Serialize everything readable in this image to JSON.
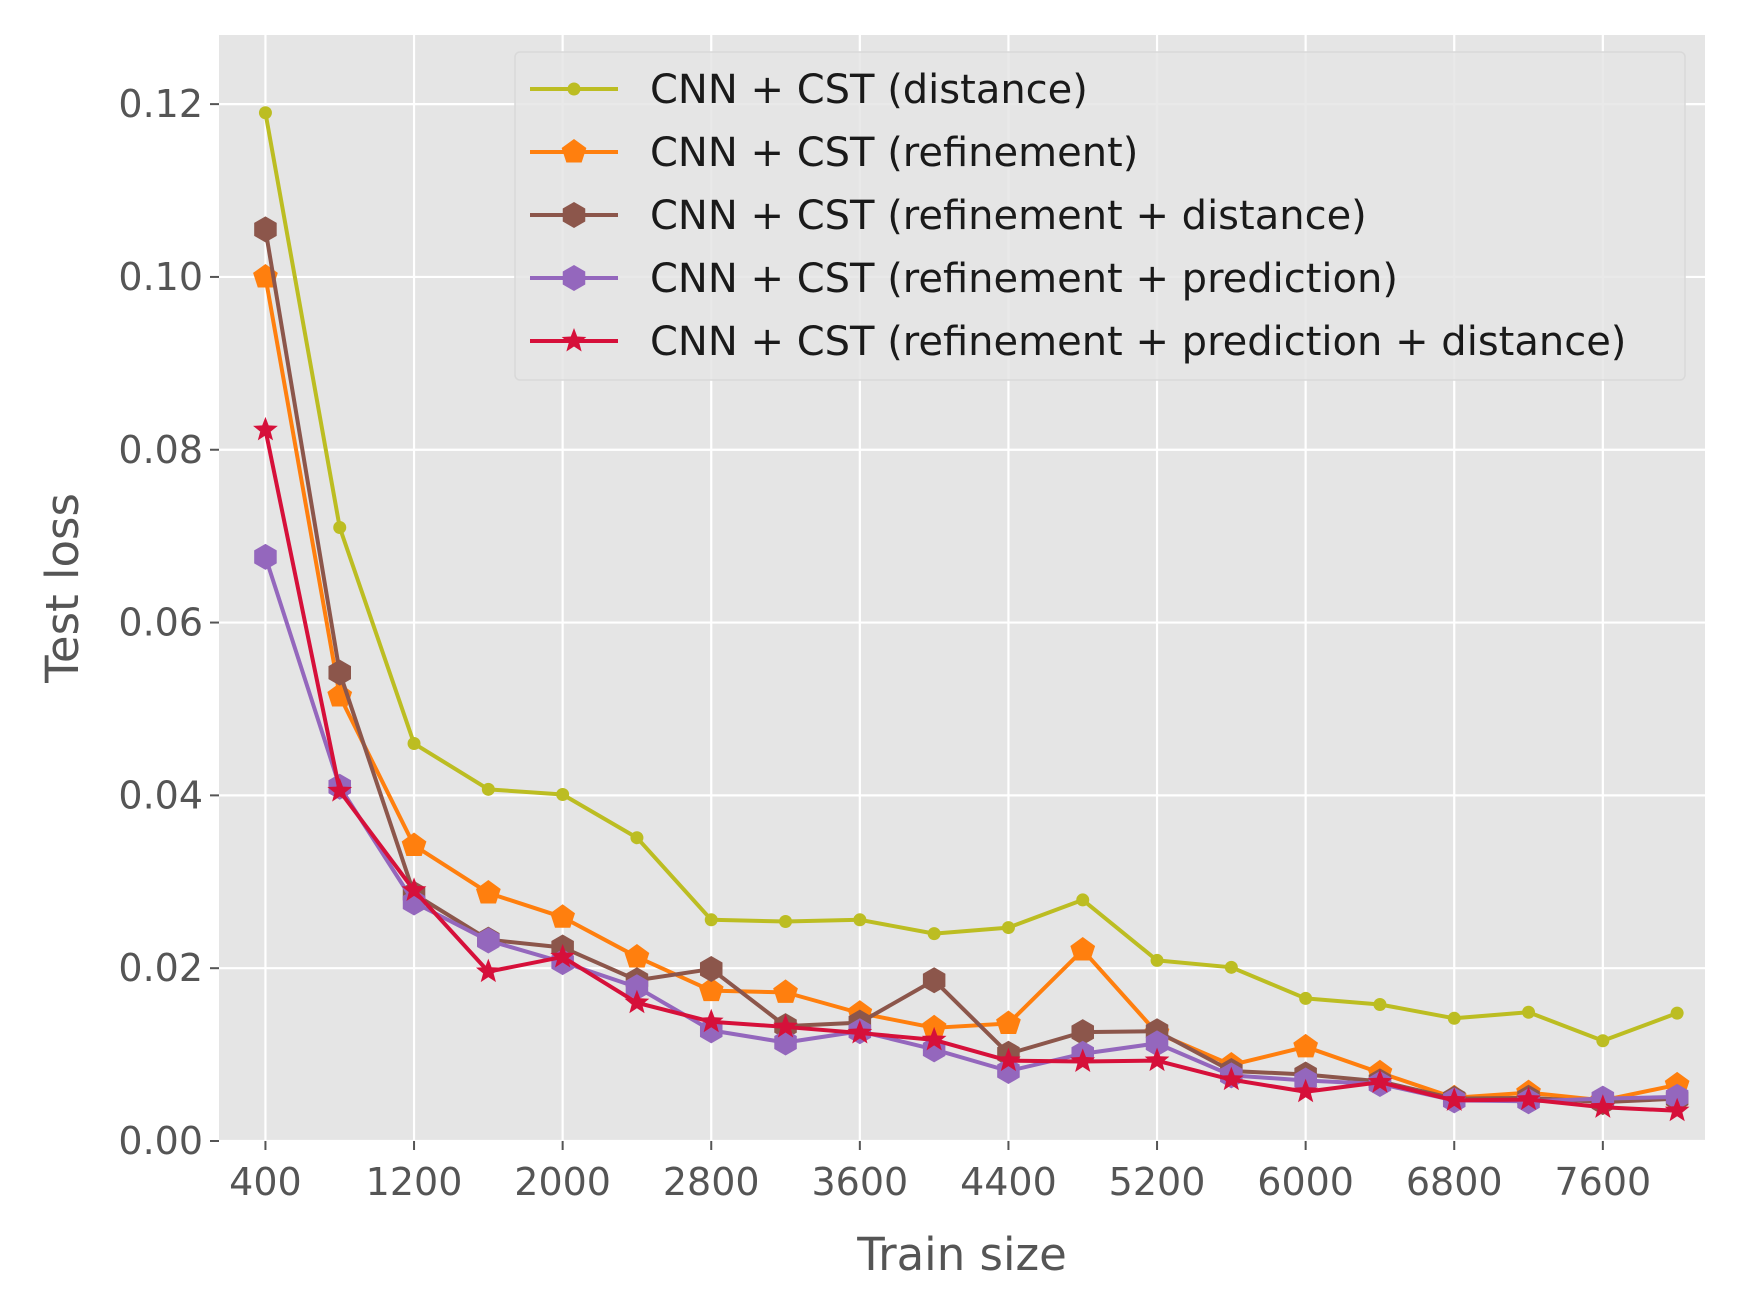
{
  "chart_data": {
    "type": "line",
    "title": "",
    "xlabel": "Train size",
    "ylabel": "Test loss",
    "xlim": [
      150,
      8150
    ],
    "ylim": [
      0.0,
      0.128
    ],
    "xticks": [
      400,
      1200,
      2000,
      2800,
      3600,
      4400,
      5200,
      6000,
      6800,
      7600
    ],
    "xtick_labels": [
      "400",
      "1200",
      "2000",
      "2800",
      "3600",
      "4400",
      "5200",
      "6000",
      "6800",
      "7600"
    ],
    "yticks": [
      0.0,
      0.02,
      0.04,
      0.06,
      0.08,
      0.1,
      0.12
    ],
    "ytick_labels": [
      "0.00",
      "0.02",
      "0.04",
      "0.06",
      "0.08",
      "0.10",
      "0.12"
    ],
    "grid": true,
    "legend_position": "top-right",
    "x": [
      400,
      800,
      1200,
      1600,
      2000,
      2400,
      2800,
      3200,
      3600,
      4000,
      4400,
      4800,
      5200,
      5600,
      6000,
      6400,
      6800,
      7200,
      7600,
      8000
    ],
    "series": [
      {
        "name": "CNN + CST (distance)",
        "color": "#bcbd22",
        "marker": "dot",
        "values": [
          0.119,
          0.071,
          0.046,
          0.0407,
          0.0401,
          0.0351,
          0.0256,
          0.0254,
          0.0256,
          0.024,
          0.0247,
          0.0279,
          0.0209,
          0.0201,
          0.0165,
          0.0158,
          0.0142,
          0.0149,
          0.0116,
          0.0148
        ]
      },
      {
        "name": "CNN + CST (refinement)",
        "color": "#ff7f0e",
        "marker": "pentagon",
        "values": [
          0.1,
          0.0515,
          0.0342,
          0.0287,
          0.0259,
          0.0213,
          0.0174,
          0.0172,
          0.0148,
          0.0131,
          0.0136,
          0.0221,
          0.0125,
          0.0088,
          0.0109,
          0.0079,
          0.005,
          0.0056,
          0.0047,
          0.0065
        ]
      },
      {
        "name": "CNN + CST (refinement + distance)",
        "color": "#8c564b",
        "marker": "hexagon",
        "values": [
          0.1055,
          0.0542,
          0.0286,
          0.0233,
          0.0224,
          0.0186,
          0.0199,
          0.0133,
          0.0137,
          0.0186,
          0.0101,
          0.0126,
          0.0127,
          0.0081,
          0.0077,
          0.0069,
          0.0049,
          0.005,
          0.0045,
          0.0049
        ]
      },
      {
        "name": "CNN + CST (refinement + prediction)",
        "color": "#9467bd",
        "marker": "hexagon",
        "values": [
          0.0676,
          0.041,
          0.0276,
          0.0232,
          0.0207,
          0.0178,
          0.0128,
          0.0114,
          0.0127,
          0.0106,
          0.0081,
          0.0101,
          0.0113,
          0.0076,
          0.007,
          0.0066,
          0.0047,
          0.0046,
          0.0049,
          0.0051
        ]
      },
      {
        "name": "CNN + CST (refinement + prediction + distance)",
        "color": "#d6103a",
        "marker": "star",
        "values": [
          0.0823,
          0.0405,
          0.029,
          0.0196,
          0.0213,
          0.016,
          0.0138,
          0.0132,
          0.0125,
          0.0117,
          0.0093,
          0.0092,
          0.0093,
          0.0071,
          0.0057,
          0.0068,
          0.0047,
          0.0048,
          0.0039,
          0.0035
        ]
      }
    ]
  }
}
